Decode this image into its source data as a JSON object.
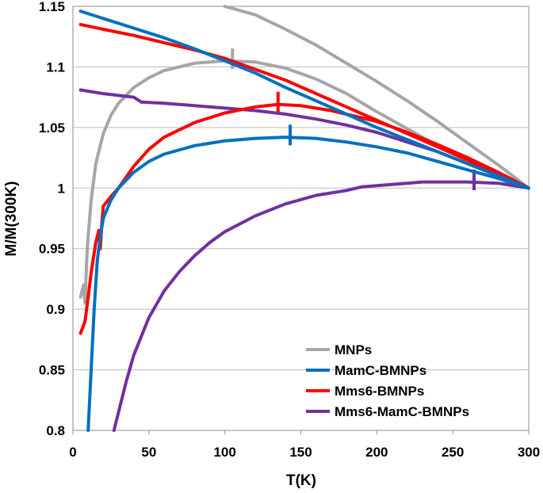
{
  "chart_data": {
    "type": "line",
    "title": "",
    "xlabel": "T(K)",
    "ylabel": "M/M(300K)",
    "xlim": [
      0,
      300
    ],
    "ylim": [
      0.8,
      1.15
    ],
    "xticks": [
      "0",
      "50",
      "100",
      "150",
      "200",
      "250",
      "300"
    ],
    "yticks": [
      "0.8",
      "0.85",
      "0.9",
      "0.95",
      "1",
      "1.05",
      "1.1",
      "1.15"
    ],
    "grid": true,
    "legend": "lower-right",
    "series": [
      {
        "name": "MNPs",
        "color": "#a6a6a6",
        "fc": {
          "x": [
            5,
            7,
            8,
            9,
            10,
            12,
            15,
            20,
            25,
            30,
            40,
            50,
            60,
            80,
            100,
            120,
            140,
            160,
            180,
            200,
            220,
            240,
            260,
            280,
            300
          ],
          "y": [
            0.91,
            0.92,
            0.905,
            0.94,
            0.96,
            0.99,
            1.02,
            1.045,
            1.06,
            1.07,
            1.083,
            1.091,
            1.097,
            1.103,
            1.105,
            1.104,
            1.099,
            1.09,
            1.078,
            1.063,
            1.049,
            1.035,
            1.022,
            1.011,
            1.0
          ]
        },
        "zfc": {
          "x": [
            100,
            120,
            140,
            160,
            180,
            200,
            220,
            240,
            260,
            280,
            300
          ],
          "y": [
            1.15,
            1.143,
            1.131,
            1.118,
            1.103,
            1.088,
            1.072,
            1.055,
            1.037,
            1.019,
            1.0
          ]
        },
        "marker_T": 105
      },
      {
        "name": "MamC-BMNPs",
        "color": "#0070c0",
        "fc": {
          "x": [
            10,
            12,
            14,
            16,
            18,
            20,
            25,
            30,
            40,
            50,
            60,
            80,
            100,
            120,
            140,
            160,
            180,
            200,
            220,
            240,
            260,
            280,
            300
          ],
          "y": [
            0.8,
            0.85,
            0.9,
            0.94,
            0.96,
            0.975,
            0.99,
            1.0,
            1.013,
            1.022,
            1.028,
            1.035,
            1.039,
            1.041,
            1.042,
            1.041,
            1.038,
            1.034,
            1.029,
            1.022,
            1.015,
            1.008,
            1.0
          ]
        },
        "zfc": {
          "x": [
            5,
            20,
            40,
            60,
            80,
            100,
            120,
            140,
            160,
            180,
            200,
            220,
            240,
            260,
            280,
            300
          ],
          "y": [
            1.146,
            1.14,
            1.132,
            1.124,
            1.115,
            1.105,
            1.095,
            1.083,
            1.072,
            1.061,
            1.05,
            1.04,
            1.03,
            1.02,
            1.01,
            1.0
          ]
        },
        "marker_T": 143
      },
      {
        "name": "Mms6-BMNPs",
        "color": "#ff0000",
        "fc": {
          "x": [
            5,
            8,
            10,
            12,
            15,
            17,
            18,
            19,
            20,
            25,
            30,
            40,
            50,
            60,
            80,
            100,
            120,
            135,
            150,
            170,
            200,
            220,
            240,
            260,
            280,
            300
          ],
          "y": [
            0.88,
            0.89,
            0.91,
            0.93,
            0.955,
            0.965,
            0.95,
            0.97,
            0.985,
            0.993,
            1.0,
            1.018,
            1.032,
            1.042,
            1.054,
            1.062,
            1.067,
            1.069,
            1.068,
            1.064,
            1.055,
            1.046,
            1.036,
            1.025,
            1.013,
            1.0
          ]
        },
        "zfc": {
          "x": [
            5,
            20,
            40,
            60,
            80,
            100,
            120,
            140,
            160,
            180,
            200,
            220,
            240,
            260,
            280,
            300
          ],
          "y": [
            1.135,
            1.131,
            1.126,
            1.12,
            1.114,
            1.107,
            1.098,
            1.089,
            1.078,
            1.067,
            1.056,
            1.045,
            1.034,
            1.023,
            1.011,
            1.0
          ]
        },
        "marker_T": 135
      },
      {
        "name": "Mms6-MamC-BMNPs",
        "color": "#7030a0",
        "fc": {
          "x": [
            27,
            30,
            35,
            40,
            50,
            60,
            70,
            80,
            90,
            100,
            120,
            140,
            160,
            180,
            190,
            200,
            220,
            230,
            240,
            260,
            280,
            300
          ],
          "y": [
            0.8,
            0.815,
            0.84,
            0.862,
            0.893,
            0.915,
            0.931,
            0.944,
            0.955,
            0.964,
            0.977,
            0.987,
            0.994,
            0.998,
            1.001,
            1.002,
            1.004,
            1.005,
            1.005,
            1.005,
            1.004,
            1.0
          ]
        },
        "zfc": {
          "x": [
            5,
            20,
            40,
            45,
            60,
            80,
            100,
            120,
            140,
            160,
            180,
            200,
            220,
            240,
            260,
            280,
            300
          ],
          "y": [
            1.081,
            1.078,
            1.075,
            1.071,
            1.07,
            1.068,
            1.066,
            1.064,
            1.061,
            1.057,
            1.052,
            1.046,
            1.038,
            1.03,
            1.02,
            1.01,
            1.0
          ]
        },
        "marker_T": 264
      }
    ]
  }
}
